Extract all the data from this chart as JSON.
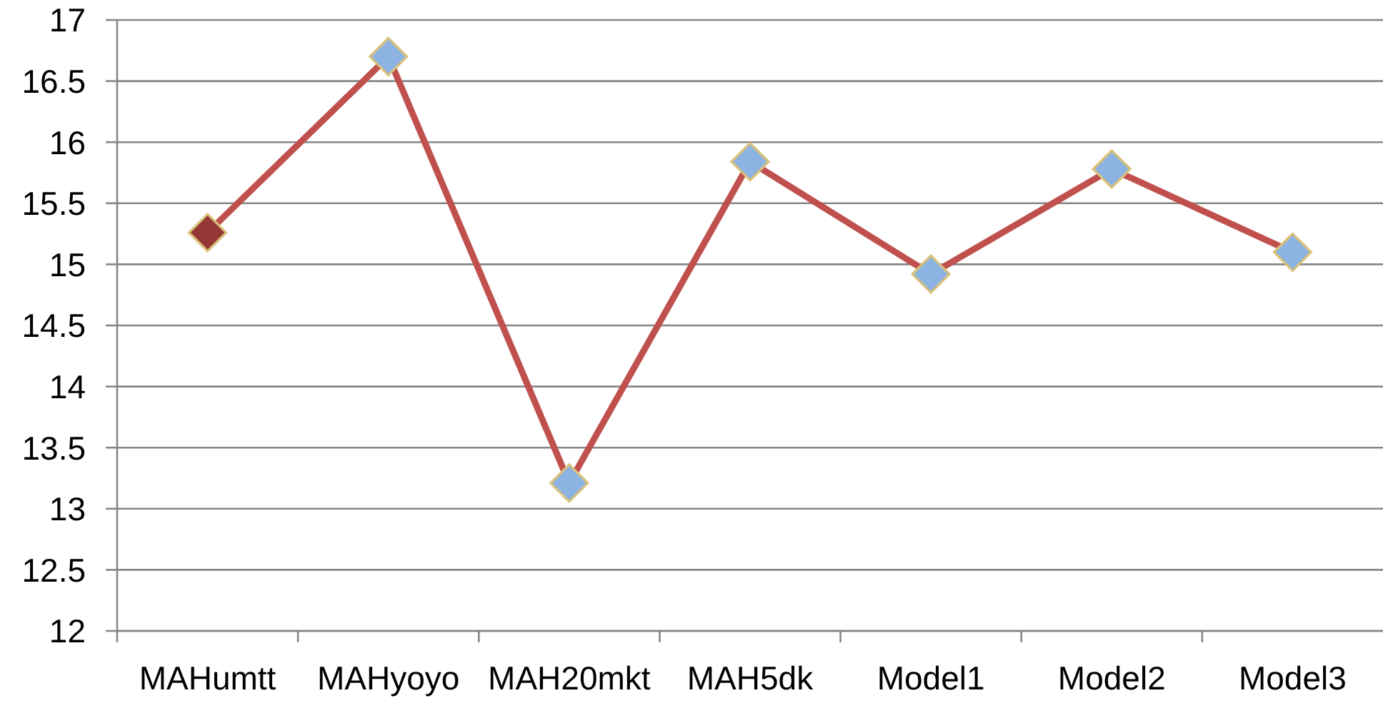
{
  "chart_data": {
    "type": "line",
    "categories": [
      "MAHumtt",
      "MAHyoyo",
      "MAH20mkt",
      "MAH5dk",
      "Model1",
      "Model2",
      "Model3"
    ],
    "values": [
      15.26,
      16.7,
      13.21,
      15.84,
      14.92,
      15.78,
      15.1
    ],
    "color": "#c0504d",
    "colors": [
      "#953735",
      "#8db3e2",
      "#8db3e2",
      "#8db3e2",
      "#8db3e2",
      "#8db3e2",
      "#8db3e2"
    ],
    "marker": "diamond",
    "ylim": [
      12,
      17
    ],
    "yticks": [
      12,
      12.5,
      13,
      13.5,
      14,
      14.5,
      15,
      15.5,
      16,
      16.5,
      17
    ],
    "grid": "y"
  }
}
